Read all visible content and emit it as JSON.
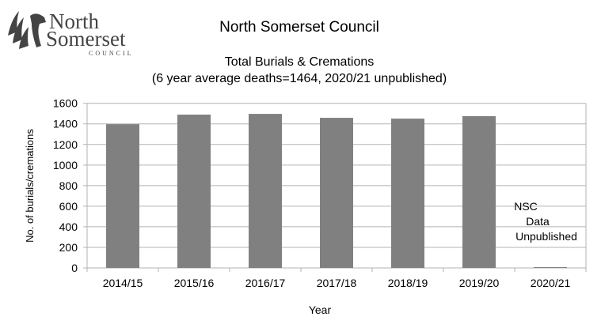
{
  "logo": {
    "line1": "North",
    "line2": "Somerset",
    "line3": "COUNCIL"
  },
  "header": {
    "title": "North Somerset Council"
  },
  "chart_data": {
    "type": "bar",
    "title": "Total Burials & Cremations",
    "subtitle": "(6 year average deaths=1464, 2020/21 unpublished)",
    "xlabel": "Year",
    "ylabel": "No. of burials/cremations",
    "categories": [
      "2014/15",
      "2015/16",
      "2016/17",
      "2017/18",
      "2018/19",
      "2019/20",
      "2020/21"
    ],
    "values": [
      1397,
      1490,
      1497,
      1459,
      1451,
      1475,
      0
    ],
    "ylim": [
      0,
      1600
    ],
    "yticks": [
      0,
      200,
      400,
      600,
      800,
      1000,
      1200,
      1400,
      1600
    ],
    "grid": true,
    "bar_color": "#808080",
    "annotation": [
      "NSC",
      "Data",
      "Unpublished"
    ]
  }
}
